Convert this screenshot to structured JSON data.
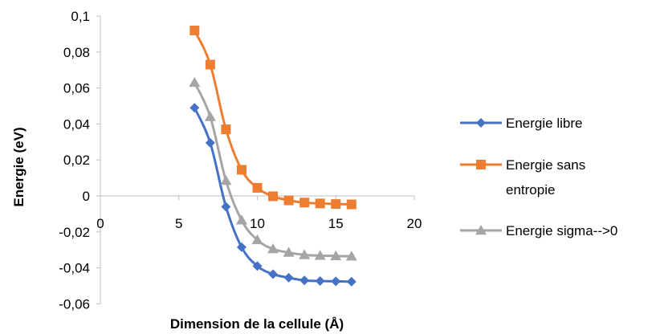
{
  "chart_data": {
    "type": "line",
    "xlabel": "Dimension de la cellule (Å)",
    "ylabel": "Energie (eV)",
    "xlim": [
      0,
      20
    ],
    "ylim": [
      -0.06,
      0.1
    ],
    "xticks": [
      0,
      5,
      10,
      15,
      20
    ],
    "xtick_labels": [
      "0",
      "5",
      "10",
      "15",
      "20"
    ],
    "yticks": [
      0.1,
      0.08,
      0.06,
      0.04,
      0.02,
      0,
      -0.02,
      -0.04,
      -0.06
    ],
    "ytick_labels": [
      "0,1",
      "0,08",
      "0,06",
      "0,04",
      "0,02",
      "0",
      "-0,02",
      "-0,04",
      "-0,06"
    ],
    "grid": false,
    "legend_position": "right",
    "x": [
      6,
      7,
      8,
      9,
      10,
      11,
      12,
      13,
      14,
      15,
      16
    ],
    "series": [
      {
        "name": "Energie libre",
        "legend_lines": [
          "Energie libre"
        ],
        "color": "#4472C4",
        "marker": "diamond",
        "values": [
          0.049,
          0.0295,
          -0.006,
          -0.0285,
          -0.039,
          -0.0435,
          -0.0455,
          -0.047,
          -0.0473,
          -0.0475,
          -0.0477
        ]
      },
      {
        "name": "Energie sans entropie",
        "legend_lines": [
          "Energie sans",
          "entropie"
        ],
        "color": "#ED7D31",
        "marker": "square",
        "values": [
          0.092,
          0.073,
          0.037,
          0.0145,
          0.0045,
          -0.0002,
          -0.0025,
          -0.0037,
          -0.0042,
          -0.0045,
          -0.0047
        ]
      },
      {
        "name": "Energie sigma-->0",
        "legend_lines": [
          "Energie sigma-->0"
        ],
        "color": "#A5A5A5",
        "marker": "triangle",
        "values": [
          0.063,
          0.044,
          0.0085,
          -0.0135,
          -0.0245,
          -0.0295,
          -0.0315,
          -0.0328,
          -0.0332,
          -0.0334,
          -0.0336
        ]
      }
    ]
  }
}
